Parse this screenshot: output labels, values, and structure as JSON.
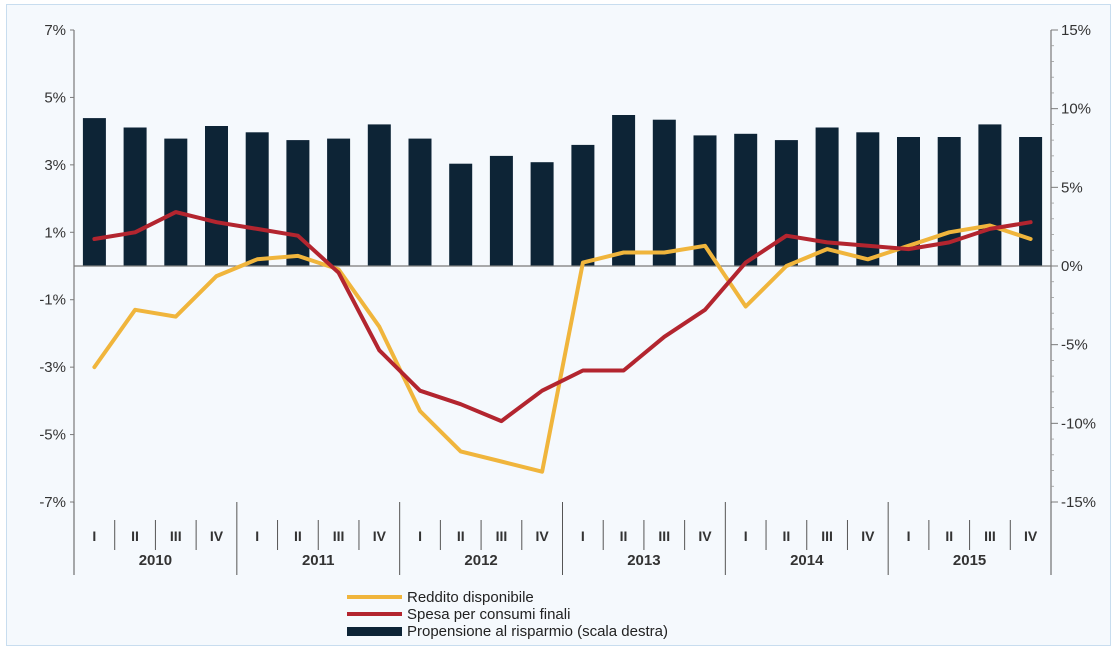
{
  "chart_data": {
    "type": "bar+line",
    "title": "",
    "xlabel": "",
    "ylabel": "",
    "quarter_labels": [
      "I",
      "II",
      "III",
      "IV"
    ],
    "years": [
      "2010",
      "2011",
      "2012",
      "2013",
      "2014",
      "2015"
    ],
    "categories": [
      "2010 I",
      "2010 II",
      "2010 III",
      "2010 IV",
      "2011 I",
      "2011 II",
      "2011 III",
      "2011 IV",
      "2012 I",
      "2012 II",
      "2012 III",
      "2012 IV",
      "2013 I",
      "2013 II",
      "2013 III",
      "2013 IV",
      "2014 I",
      "2014 II",
      "2014 III",
      "2014 IV",
      "2015 I",
      "2015 II",
      "2015 III",
      "2015 IV"
    ],
    "y_left": {
      "ylim": [
        -7,
        7
      ],
      "ticks": [
        -7,
        -5,
        -3,
        -1,
        1,
        3,
        5,
        7
      ],
      "tick_labels": [
        "-7%",
        "-5%",
        "-3%",
        "-1%",
        "1%",
        "3%",
        "5%",
        "7%"
      ]
    },
    "y_right": {
      "ylim": [
        -15,
        15
      ],
      "ticks": [
        -15,
        -10,
        -5,
        0,
        5,
        10,
        15
      ],
      "tick_labels": [
        "-15%",
        "-10%",
        "-5%",
        "0%",
        "5%",
        "10%",
        "15%"
      ]
    },
    "series": [
      {
        "name": "Propensione al risparmio (scala destra)",
        "type": "bar",
        "axis": "right",
        "color": "#0d2436",
        "values": [
          9.4,
          8.8,
          8.1,
          8.9,
          8.5,
          8.0,
          8.1,
          9.0,
          8.1,
          6.5,
          7.0,
          6.6,
          7.7,
          9.6,
          9.3,
          8.3,
          8.4,
          8.0,
          8.8,
          8.5,
          8.2,
          8.2,
          9.0,
          8.2
        ]
      },
      {
        "name": "Reddito disponibile",
        "type": "line",
        "axis": "left",
        "color": "#f0b53c",
        "values": [
          -3.0,
          -1.3,
          -1.5,
          -0.3,
          0.2,
          0.3,
          -0.1,
          -1.8,
          -4.3,
          -5.5,
          -5.8,
          -6.1,
          0.1,
          0.4,
          0.4,
          0.6,
          -1.2,
          0.0,
          0.5,
          0.2,
          0.6,
          1.0,
          1.2,
          0.8
        ]
      },
      {
        "name": "Spesa per consumi finali",
        "type": "line",
        "axis": "left",
        "color": "#b3252f",
        "values": [
          0.8,
          1.0,
          1.6,
          1.3,
          1.1,
          0.9,
          -0.2,
          -2.5,
          -3.7,
          -4.1,
          -4.6,
          -3.7,
          -3.1,
          -3.1,
          -2.1,
          -1.3,
          0.1,
          0.9,
          0.7,
          0.6,
          0.5,
          0.7,
          1.1,
          1.3
        ]
      }
    ],
    "legend": {
      "position": "bottom-center",
      "items": [
        {
          "label": "Reddito disponibile",
          "color": "#f0b53c",
          "kind": "line"
        },
        {
          "label": "Spesa per consumi finali",
          "color": "#b3252f",
          "kind": "line"
        },
        {
          "label": "Propensione al risparmio (scala destra)",
          "color": "#0d2436",
          "kind": "bar"
        }
      ]
    },
    "grid": false
  }
}
